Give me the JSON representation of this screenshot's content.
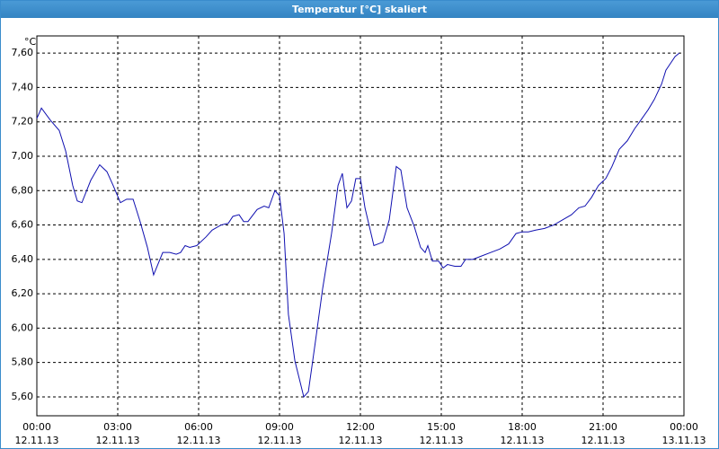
{
  "window_title": "Temperatur [°C] skaliert",
  "chart_data": {
    "type": "line",
    "y_label": "°C",
    "color": "#1010b0",
    "grid": true,
    "xlim": [
      0,
      24
    ],
    "ylim": [
      5.49,
      7.7
    ],
    "xticks": [
      {
        "value": 0,
        "label": "00:00"
      },
      {
        "value": 3,
        "label": "03:00"
      },
      {
        "value": 6,
        "label": "06:00"
      },
      {
        "value": 9,
        "label": "09:00"
      },
      {
        "value": 12,
        "label": "12:00"
      },
      {
        "value": 15,
        "label": "15:00"
      },
      {
        "value": 18,
        "label": "18:00"
      },
      {
        "value": 21,
        "label": "21:00"
      },
      {
        "value": 24,
        "label": "00:00"
      }
    ],
    "xtick_dates": [
      "12.11.13",
      "12.11.13",
      "12.11.13",
      "12.11.13",
      "12.11.13",
      "12.11.13",
      "12.11.13",
      "12.11.13",
      "13.11.13"
    ],
    "yticks": [
      {
        "value": 5.6,
        "label": "5,60"
      },
      {
        "value": 5.8,
        "label": "5,80"
      },
      {
        "value": 6.0,
        "label": "6,00"
      },
      {
        "value": 6.2,
        "label": "6,20"
      },
      {
        "value": 6.4,
        "label": "6,40"
      },
      {
        "value": 6.6,
        "label": "6,60"
      },
      {
        "value": 6.8,
        "label": "6,80"
      },
      {
        "value": 7.0,
        "label": "7,00"
      },
      {
        "value": 7.2,
        "label": "7,20"
      },
      {
        "value": 7.4,
        "label": "7,40"
      },
      {
        "value": 7.6,
        "label": "7,60"
      }
    ],
    "x": [
      0,
      0.17,
      0.5,
      0.83,
      1.07,
      1.33,
      1.5,
      1.67,
      2,
      2.33,
      2.6,
      2.83,
      3.1,
      3.33,
      3.57,
      3.83,
      4.1,
      4.33,
      4.67,
      4.93,
      5.17,
      5.33,
      5.5,
      5.67,
      5.93,
      6.27,
      6.5,
      6.83,
      7.1,
      7.27,
      7.5,
      7.67,
      7.83,
      8.17,
      8.43,
      8.6,
      8.83,
      9,
      9.17,
      9.33,
      9.57,
      9.9,
      10.07,
      10.33,
      10.6,
      10.93,
      11.17,
      11.33,
      11.5,
      11.67,
      11.83,
      12,
      12.17,
      12.5,
      12.83,
      13.07,
      13.33,
      13.5,
      13.73,
      14,
      14.23,
      14.4,
      14.5,
      14.67,
      14.9,
      15.07,
      15.23,
      15.5,
      15.73,
      15.9,
      16.17,
      16.5,
      16.83,
      17.17,
      17.5,
      17.77,
      18,
      18.23,
      18.5,
      18.83,
      19.17,
      19.5,
      19.83,
      20.1,
      20.33,
      20.57,
      20.83,
      21.1,
      21.33,
      21.6,
      21.9,
      22.17,
      22.4,
      22.67,
      22.9,
      23.17,
      23.33,
      23.5,
      23.67,
      23.83
    ],
    "values": [
      7.22,
      7.28,
      7.21,
      7.15,
      7.03,
      6.83,
      6.74,
      6.73,
      6.86,
      6.95,
      6.91,
      6.83,
      6.73,
      6.75,
      6.75,
      6.62,
      6.47,
      6.31,
      6.44,
      6.44,
      6.43,
      6.44,
      6.48,
      6.47,
      6.48,
      6.53,
      6.57,
      6.6,
      6.61,
      6.65,
      6.66,
      6.62,
      6.62,
      6.69,
      6.71,
      6.7,
      6.8,
      6.77,
      6.55,
      6.08,
      5.81,
      5.6,
      5.63,
      5.92,
      6.23,
      6.55,
      6.83,
      6.9,
      6.7,
      6.74,
      6.87,
      6.87,
      6.7,
      6.48,
      6.5,
      6.63,
      6.94,
      6.92,
      6.7,
      6.59,
      6.47,
      6.44,
      6.48,
      6.39,
      6.39,
      6.35,
      6.37,
      6.36,
      6.36,
      6.4,
      6.4,
      6.42,
      6.44,
      6.46,
      6.49,
      6.55,
      6.56,
      6.56,
      6.57,
      6.58,
      6.6,
      6.63,
      6.66,
      6.7,
      6.71,
      6.76,
      6.83,
      6.87,
      6.94,
      7.04,
      7.09,
      7.16,
      7.21,
      7.27,
      7.33,
      7.42,
      7.5,
      7.54,
      7.58,
      7.6
    ]
  }
}
